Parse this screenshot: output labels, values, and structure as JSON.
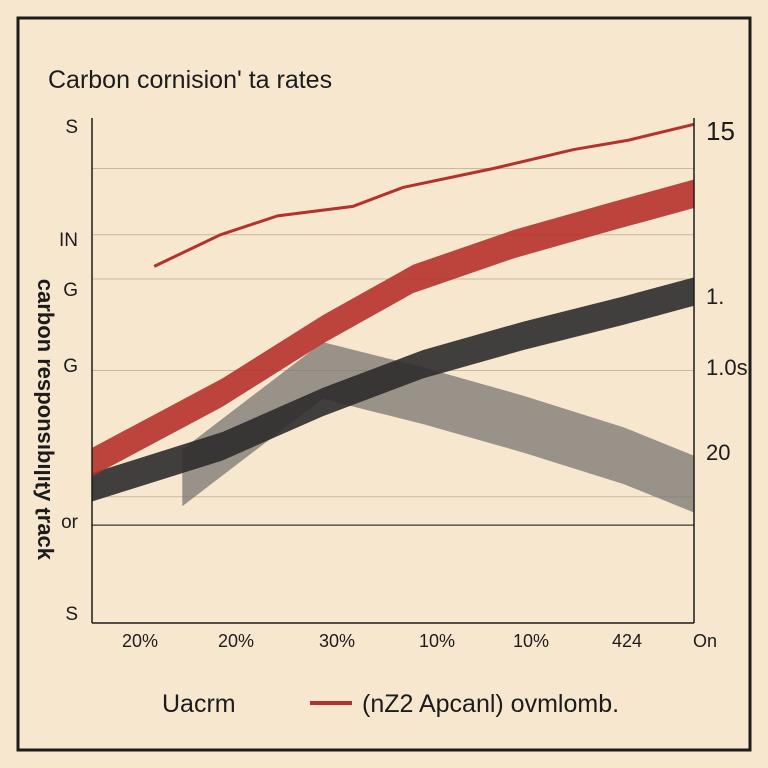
{
  "chart_data": {
    "type": "line",
    "title": "Carbon cornision' ta rates",
    "ylabel": "ʞɔɐɹʇ ʎʇılıqısuodsǝɹ uoqɹɐɔ",
    "xlabel": "",
    "x_ticks": [
      "20%",
      "20%",
      "30%",
      "10%",
      "10%",
      "424",
      "On"
    ],
    "left_ticks": [
      "S",
      "IN",
      "G",
      "G",
      "or",
      "S"
    ],
    "right_ticks": [
      "15",
      "1.",
      "1.0s",
      "20"
    ],
    "x": [
      0,
      1,
      2,
      3,
      4,
      5,
      6
    ],
    "ylim": [
      0,
      16
    ],
    "grid": true,
    "legend_placement": "bottom",
    "legend": [
      {
        "label": "Uacrm",
        "color": ""
      },
      {
        "label": "(nZ2 Apcanl) ovmlomb.",
        "color": "#b5322c"
      }
    ],
    "series": [
      {
        "color": "#b5322c",
        "style": "thin",
        "points": [
          [
            0.62,
            11.3
          ],
          [
            1.28,
            12.3
          ],
          [
            1.85,
            12.9
          ],
          [
            2.6,
            13.2
          ],
          [
            3.1,
            13.8
          ],
          [
            4.0,
            14.4
          ],
          [
            4.8,
            15.0
          ],
          [
            5.35,
            15.3
          ],
          [
            6.0,
            15.8
          ]
        ]
      },
      {
        "color": "#b5322c",
        "style": "band",
        "points": [
          [
            0,
            5.1
          ],
          [
            1.3,
            7.3
          ],
          [
            2.3,
            9.3
          ],
          [
            3.2,
            10.9
          ],
          [
            4.2,
            12.0
          ],
          [
            5.2,
            12.9
          ],
          [
            6.0,
            13.6
          ]
        ],
        "band_width": 0.45
      },
      {
        "color": "#2c2c2c",
        "style": "band",
        "points": [
          [
            0,
            4.3
          ],
          [
            1.3,
            5.6
          ],
          [
            2.3,
            7.0
          ],
          [
            3.3,
            8.2
          ],
          [
            4.3,
            9.1
          ],
          [
            5.3,
            9.9
          ],
          [
            6.0,
            10.5
          ]
        ],
        "band_width": 0.45
      },
      {
        "color": "#7a7570",
        "style": "band",
        "points": [
          [
            0.9,
            4.6
          ],
          [
            2.3,
            8.0
          ],
          [
            3.3,
            7.2
          ],
          [
            4.3,
            6.3
          ],
          [
            5.3,
            5.3
          ],
          [
            6.0,
            4.4
          ]
        ],
        "band_width": 0.9
      }
    ]
  }
}
